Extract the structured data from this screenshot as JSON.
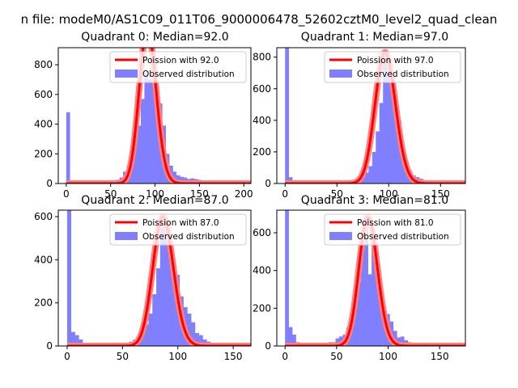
{
  "suptitle": "n file: modeM0/AS1C09_011T06_9000006478_52602cztM0_level2_quad_clean",
  "colors": {
    "histogram": "#7f7fff",
    "poisson_line": "#ff0000",
    "poisson_fill": "#ff8080"
  },
  "chart_data": [
    {
      "type": "bar",
      "title": "Quadrant 0: Median=92.0",
      "xlim": [
        -9,
        208
      ],
      "ylim": [
        0,
        915
      ],
      "xticks": [
        0,
        50,
        100,
        150,
        200
      ],
      "yticks": [
        0,
        200,
        400,
        600,
        800
      ],
      "legend_position": "top-right",
      "legend": [
        "Poission with 92.0",
        "Observed distribution"
      ],
      "poisson_lambda": 92.0,
      "poisson_scale": 25000,
      "bin_width": 4,
      "bins": [
        [
          0,
          480
        ],
        [
          4,
          15
        ],
        [
          8,
          0
        ],
        [
          12,
          0
        ],
        [
          16,
          0
        ],
        [
          20,
          0
        ],
        [
          24,
          0
        ],
        [
          28,
          0
        ],
        [
          32,
          0
        ],
        [
          36,
          0
        ],
        [
          40,
          0
        ],
        [
          44,
          0
        ],
        [
          48,
          0
        ],
        [
          52,
          0
        ],
        [
          56,
          25
        ],
        [
          60,
          40
        ],
        [
          64,
          80
        ],
        [
          68,
          120
        ],
        [
          72,
          180
        ],
        [
          76,
          340
        ],
        [
          80,
          390
        ],
        [
          84,
          570
        ],
        [
          88,
          740
        ],
        [
          92,
          700
        ],
        [
          96,
          800
        ],
        [
          100,
          560
        ],
        [
          104,
          540
        ],
        [
          108,
          390
        ],
        [
          112,
          200
        ],
        [
          116,
          120
        ],
        [
          120,
          80
        ],
        [
          124,
          55
        ],
        [
          128,
          45
        ],
        [
          132,
          40
        ],
        [
          136,
          30
        ],
        [
          140,
          35
        ],
        [
          144,
          30
        ],
        [
          148,
          25
        ],
        [
          152,
          18
        ],
        [
          156,
          14
        ],
        [
          160,
          8
        ],
        [
          164,
          6
        ],
        [
          168,
          4
        ],
        [
          172,
          3
        ],
        [
          176,
          2
        ],
        [
          180,
          2
        ],
        [
          184,
          1
        ],
        [
          188,
          1
        ],
        [
          192,
          1
        ],
        [
          196,
          1
        ]
      ]
    },
    {
      "type": "bar",
      "title": "Quadrant 1: Median=97.0",
      "xlim": [
        -8,
        174
      ],
      "ylim": [
        0,
        860
      ],
      "xticks": [
        0,
        50,
        100,
        150
      ],
      "yticks": [
        0,
        200,
        400,
        600,
        800
      ],
      "legend_position": "top-right",
      "legend": [
        "Poission with 97.0",
        "Observed distribution"
      ],
      "poisson_lambda": 97.0,
      "poisson_scale": 20500,
      "bin_width": 3.5,
      "bins": [
        [
          0,
          860
        ],
        [
          3.5,
          40
        ],
        [
          7,
          20
        ],
        [
          10.5,
          0
        ],
        [
          14,
          0
        ],
        [
          17.5,
          0
        ],
        [
          21,
          0
        ],
        [
          24.5,
          0
        ],
        [
          28,
          0
        ],
        [
          31.5,
          0
        ],
        [
          35,
          0
        ],
        [
          38.5,
          0
        ],
        [
          42,
          0
        ],
        [
          45.5,
          0
        ],
        [
          49,
          0
        ],
        [
          52.5,
          0
        ],
        [
          56,
          0
        ],
        [
          59.5,
          0
        ],
        [
          63,
          0
        ],
        [
          66.5,
          20
        ],
        [
          70,
          30
        ],
        [
          73.5,
          40
        ],
        [
          77,
          70
        ],
        [
          80.5,
          110
        ],
        [
          84,
          200
        ],
        [
          87.5,
          330
        ],
        [
          91,
          510
        ],
        [
          94.5,
          780
        ],
        [
          98,
          810
        ],
        [
          101.5,
          690
        ],
        [
          105,
          560
        ],
        [
          108.5,
          400
        ],
        [
          112,
          230
        ],
        [
          115.5,
          140
        ],
        [
          119,
          80
        ],
        [
          122.5,
          50
        ],
        [
          126,
          40
        ],
        [
          129.5,
          30
        ],
        [
          133,
          20
        ],
        [
          136.5,
          14
        ],
        [
          140,
          8
        ],
        [
          143.5,
          5
        ],
        [
          147,
          3
        ],
        [
          150.5,
          2
        ],
        [
          154,
          1
        ],
        [
          157.5,
          1
        ],
        [
          161,
          1
        ],
        [
          164.5,
          1
        ]
      ]
    },
    {
      "type": "bar",
      "title": "Quadrant 2: Median=87.0",
      "xlim": [
        -8,
        166
      ],
      "ylim": [
        0,
        630
      ],
      "xticks": [
        0,
        50,
        100,
        150
      ],
      "yticks": [
        0,
        200,
        400,
        600
      ],
      "legend_position": "top-right",
      "legend": [
        "Poission with 87.0",
        "Observed distribution"
      ],
      "poisson_lambda": 87.0,
      "poisson_scale": 14000,
      "bin_width": 3.5,
      "bins": [
        [
          0,
          630
        ],
        [
          3.5,
          65
        ],
        [
          7,
          50
        ],
        [
          10.5,
          30
        ],
        [
          14,
          0
        ],
        [
          17.5,
          0
        ],
        [
          21,
          0
        ],
        [
          24.5,
          0
        ],
        [
          28,
          0
        ],
        [
          31.5,
          0
        ],
        [
          35,
          0
        ],
        [
          38.5,
          0
        ],
        [
          42,
          0
        ],
        [
          45.5,
          0
        ],
        [
          49,
          10
        ],
        [
          52.5,
          15
        ],
        [
          56,
          20
        ],
        [
          59.5,
          30
        ],
        [
          63,
          45
        ],
        [
          66.5,
          60
        ],
        [
          70,
          100
        ],
        [
          73.5,
          150
        ],
        [
          77,
          240
        ],
        [
          80.5,
          360
        ],
        [
          84,
          560
        ],
        [
          87.5,
          560
        ],
        [
          91,
          500
        ],
        [
          94.5,
          390
        ],
        [
          98,
          330
        ],
        [
          101.5,
          230
        ],
        [
          105,
          180
        ],
        [
          108.5,
          150
        ],
        [
          112,
          110
        ],
        [
          115.5,
          60
        ],
        [
          119,
          50
        ],
        [
          122.5,
          30
        ],
        [
          126,
          20
        ],
        [
          129.5,
          10
        ],
        [
          133,
          6
        ],
        [
          136.5,
          4
        ],
        [
          140,
          3
        ],
        [
          143.5,
          2
        ],
        [
          147,
          1
        ],
        [
          150.5,
          1
        ],
        [
          154,
          1
        ]
      ]
    },
    {
      "type": "bar",
      "title": "Quadrant 3: Median=81.0",
      "xlim": [
        -8,
        175
      ],
      "ylim": [
        0,
        720
      ],
      "xticks": [
        0,
        50,
        100,
        150
      ],
      "yticks": [
        0,
        200,
        400,
        600
      ],
      "legend_position": "top-right",
      "legend": [
        "Poission with 81.0",
        "Observed distribution"
      ],
      "poisson_lambda": 81.0,
      "poisson_scale": 15400,
      "bin_width": 3.5,
      "bins": [
        [
          0,
          720
        ],
        [
          3.5,
          100
        ],
        [
          7,
          60
        ],
        [
          10.5,
          20
        ],
        [
          14,
          0
        ],
        [
          17.5,
          0
        ],
        [
          21,
          0
        ],
        [
          24.5,
          0
        ],
        [
          28,
          0
        ],
        [
          31.5,
          0
        ],
        [
          35,
          0
        ],
        [
          38.5,
          0
        ],
        [
          42,
          20
        ],
        [
          45.5,
          20
        ],
        [
          49,
          40
        ],
        [
          52.5,
          50
        ],
        [
          56,
          60
        ],
        [
          59.5,
          100
        ],
        [
          63,
          150
        ],
        [
          66.5,
          270
        ],
        [
          70,
          340
        ],
        [
          73.5,
          510
        ],
        [
          77,
          640
        ],
        [
          80.5,
          380
        ],
        [
          84,
          550
        ],
        [
          87.5,
          420
        ],
        [
          91,
          270
        ],
        [
          94.5,
          210
        ],
        [
          98,
          170
        ],
        [
          101.5,
          130
        ],
        [
          105,
          80
        ],
        [
          108.5,
          45
        ],
        [
          112,
          50
        ],
        [
          115.5,
          30
        ],
        [
          119,
          20
        ],
        [
          122.5,
          15
        ],
        [
          126,
          10
        ],
        [
          129.5,
          6
        ],
        [
          133,
          4
        ],
        [
          136.5,
          3
        ],
        [
          140,
          2
        ],
        [
          143.5,
          1
        ],
        [
          147,
          1
        ],
        [
          150.5,
          1
        ]
      ]
    }
  ]
}
